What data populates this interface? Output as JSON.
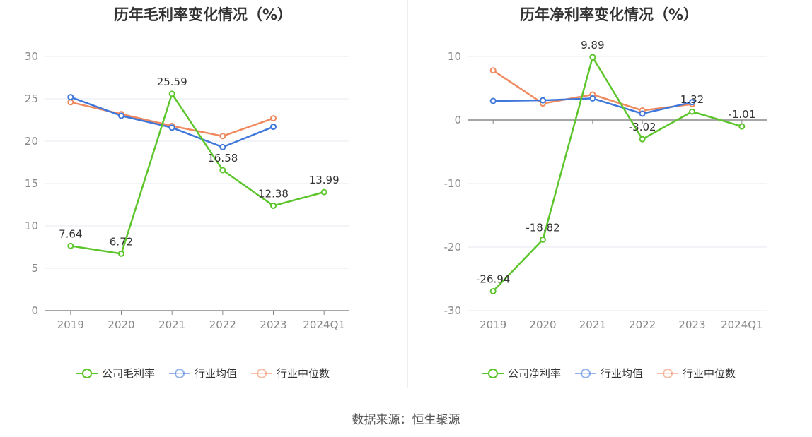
{
  "chart_data": [
    {
      "type": "line",
      "title": "历年毛利率变化情况（%）",
      "categories": [
        "2019",
        "2020",
        "2021",
        "2022",
        "2023",
        "2024Q1"
      ],
      "ylim": [
        0,
        30
      ],
      "yticks": [
        0,
        5,
        10,
        15,
        20,
        25,
        30
      ],
      "grid": true,
      "legend_position": "bottom",
      "series": [
        {
          "name": "公司毛利率",
          "color": "#5cc52b",
          "values": [
            7.64,
            6.72,
            25.59,
            16.58,
            12.38,
            13.99
          ],
          "labels": true
        },
        {
          "name": "行业均值",
          "color": "#3f77db",
          "values": [
            25.2,
            23.0,
            21.6,
            19.3,
            21.7,
            null
          ],
          "labels": false
        },
        {
          "name": "行业中位数",
          "color": "#ef8a5f",
          "values": [
            24.6,
            23.2,
            21.8,
            20.6,
            22.7,
            null
          ],
          "labels": false
        }
      ]
    },
    {
      "type": "line",
      "title": "历年净利率变化情况（%）",
      "categories": [
        "2019",
        "2020",
        "2021",
        "2022",
        "2023",
        "2024Q1"
      ],
      "ylim": [
        -30,
        10
      ],
      "yticks": [
        -30,
        -20,
        -10,
        0,
        10
      ],
      "grid": true,
      "legend_position": "bottom",
      "series": [
        {
          "name": "公司净利率",
          "color": "#5cc52b",
          "values": [
            -26.94,
            -18.82,
            9.89,
            -3.02,
            1.32,
            -1.01
          ],
          "labels": true
        },
        {
          "name": "行业均值",
          "color": "#3f77db",
          "values": [
            3.0,
            3.1,
            3.4,
            1.0,
            2.8,
            null
          ],
          "labels": false
        },
        {
          "name": "行业中位数",
          "color": "#ef8a5f",
          "values": [
            7.8,
            2.6,
            4.0,
            1.5,
            2.5,
            null
          ],
          "labels": false
        }
      ]
    }
  ],
  "source": "数据来源：恒生聚源"
}
